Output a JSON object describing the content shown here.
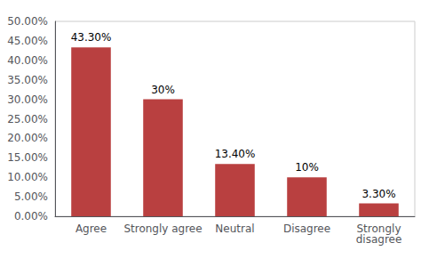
{
  "chart_data": {
    "type": "bar",
    "categories": [
      "Agree",
      "Strongly agree",
      "Neutral",
      "Disagree",
      "Strongly\ndisagree"
    ],
    "values": [
      43.3,
      30.0,
      13.4,
      10.0,
      3.3
    ],
    "value_labels": [
      "43.30%",
      "30%",
      "13.40%",
      "10%",
      "3.30%"
    ],
    "data_labels": true,
    "color": "#b94040",
    "ylim": [
      0,
      50
    ],
    "yticks": [
      {
        "value": 0,
        "label": "0.00%"
      },
      {
        "value": 5,
        "label": "5.00%"
      },
      {
        "value": 10,
        "label": "10.00%"
      },
      {
        "value": 15,
        "label": "15.00%"
      },
      {
        "value": 20,
        "label": "20.00%"
      },
      {
        "value": 25,
        "label": "25.00%"
      },
      {
        "value": 30,
        "label": "30.00%"
      },
      {
        "value": 35,
        "label": "35.00%"
      },
      {
        "value": 40,
        "label": "40.00%"
      },
      {
        "value": 45,
        "label": "45.00%"
      },
      {
        "value": 50,
        "label": "50.00%"
      }
    ],
    "grid": false
  }
}
